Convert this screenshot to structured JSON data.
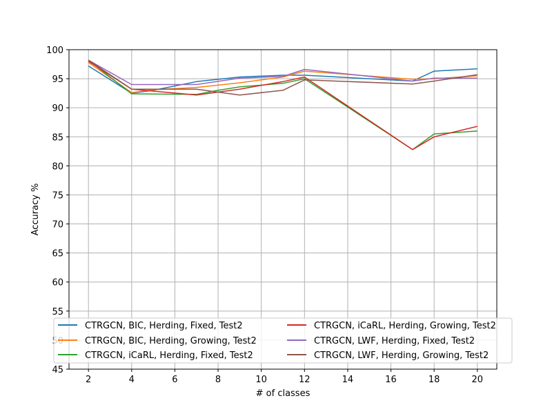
{
  "chart_data": {
    "type": "line",
    "title": "",
    "xlabel": "# of classes",
    "ylabel": "Accuracy %",
    "xlim": [
      1.1,
      20.9
    ],
    "ylim": [
      45,
      100
    ],
    "xticks": [
      2,
      4,
      6,
      8,
      10,
      12,
      14,
      16,
      18,
      20
    ],
    "yticks": [
      45,
      50,
      55,
      60,
      65,
      70,
      75,
      80,
      85,
      90,
      95,
      100
    ],
    "grid": true,
    "legend_position": "lower center, 2 columns",
    "series": [
      {
        "name": "CTRGCN, BIC, Herding, Fixed, Test2",
        "color": "#1f77b4",
        "x": [
          2,
          4,
          5,
          7,
          9,
          11,
          12,
          17,
          18,
          20
        ],
        "y": [
          97.2,
          92.5,
          93.0,
          94.5,
          95.3,
          95.6,
          95.6,
          94.6,
          96.3,
          96.7
        ]
      },
      {
        "name": "CTRGCN, BIC, Herding, Growing, Test2",
        "color": "#ff7f0e",
        "x": [
          2,
          4,
          5,
          7,
          9,
          11,
          12,
          17,
          18,
          20
        ],
        "y": [
          97.8,
          92.6,
          93.1,
          93.5,
          94.3,
          95.3,
          96.3,
          94.9,
          95.0,
          95.5
        ]
      },
      {
        "name": "CTRGCN, iCaRL, Herding, Fixed, Test2",
        "color": "#2ca02c",
        "x": [
          2,
          4,
          7,
          8,
          9,
          11,
          12,
          17,
          18,
          20
        ],
        "y": [
          98.2,
          92.4,
          92.3,
          93.0,
          93.6,
          94.2,
          95.0,
          82.8,
          85.5,
          86.0
        ]
      },
      {
        "name": "CTRGCN, iCaRL, Herding, Growing, Test2",
        "color": "#d62728",
        "x": [
          2,
          4,
          7,
          9,
          11,
          12,
          17,
          18,
          20
        ],
        "y": [
          98.0,
          93.2,
          92.2,
          93.2,
          94.5,
          95.3,
          82.8,
          85.0,
          86.8
        ]
      },
      {
        "name": "CTRGCN, LWF, Herding, Fixed, Test2",
        "color": "#9467bd",
        "x": [
          2,
          4,
          7,
          9,
          11,
          12,
          17,
          18,
          20
        ],
        "y": [
          98.2,
          94.0,
          94.0,
          95.1,
          95.4,
          96.6,
          94.6,
          95.1,
          95.1
        ]
      },
      {
        "name": "CTRGCN, LWF, Herding, Growing, Test2",
        "color": "#8c564b",
        "x": [
          2,
          4,
          7,
          9,
          11,
          12,
          17,
          18,
          20
        ],
        "y": [
          98.2,
          93.2,
          93.2,
          92.2,
          93.0,
          94.8,
          94.1,
          94.6,
          95.7
        ]
      }
    ]
  }
}
